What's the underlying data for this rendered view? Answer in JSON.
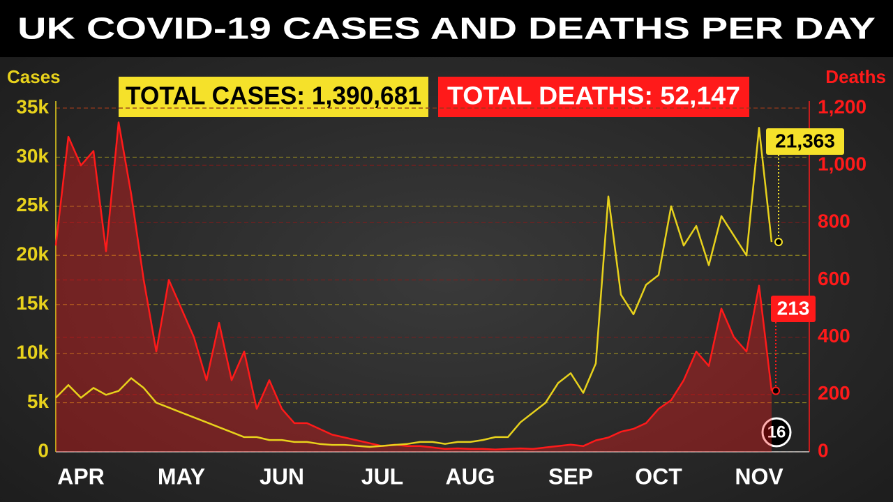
{
  "chart_data": {
    "type": "dual-line",
    "title": "UK COVID-19 CASES AND DEATHS PER DAY",
    "ylabel": "Cases",
    "y2label": "Deaths",
    "totals": [
      "TOTAL CASES: 1,390,681",
      "TOTAL DEATHS: 52,147"
    ],
    "annotation": "16",
    "categories": [
      null,
      null,
      "APR",
      null,
      null,
      null,
      null,
      null,
      null,
      null,
      "MAY",
      null,
      null,
      null,
      null,
      null,
      null,
      null,
      "JUN",
      null,
      null,
      null,
      null,
      null,
      null,
      null,
      "JUL",
      null,
      null,
      null,
      null,
      null,
      null,
      "AUG",
      null,
      null,
      null,
      null,
      null,
      null,
      null,
      "SEP",
      null,
      null,
      null,
      null,
      null,
      null,
      "OCT",
      null,
      null,
      null,
      null,
      null,
      null,
      null,
      "NOV",
      null
    ],
    "series": [
      {
        "name": "Cases",
        "color": "#e8d21c",
        "values": [
          5500,
          6800,
          5500,
          6500,
          5800,
          6200,
          7500,
          6500,
          5000,
          4500,
          4000,
          3500,
          3000,
          2500,
          2000,
          1500,
          1500,
          1200,
          1200,
          1000,
          1000,
          800,
          700,
          700,
          600,
          500,
          600,
          700,
          800,
          1000,
          1000,
          800,
          1000,
          1000,
          1200,
          1500,
          1500,
          3000,
          4000,
          5000,
          7000,
          8000,
          6000,
          9000,
          26000,
          16000,
          14000,
          17000,
          18000,
          25000,
          21000,
          23000,
          19000,
          24000,
          22000,
          20000,
          33000,
          21363
        ],
        "value_labels": [
          null,
          null,
          null,
          null,
          null,
          null,
          null,
          null,
          null,
          null,
          null,
          null,
          null,
          null,
          null,
          null,
          null,
          null,
          null,
          null,
          null,
          null,
          null,
          null,
          null,
          null,
          null,
          null,
          null,
          null,
          null,
          null,
          null,
          null,
          null,
          null,
          null,
          null,
          null,
          null,
          null,
          null,
          null,
          null,
          null,
          null,
          null,
          null,
          null,
          null,
          null,
          null,
          null,
          null,
          null,
          null,
          null,
          "21,363"
        ]
      },
      {
        "name": "Deaths",
        "color": "#ff1a1a",
        "axis": "y2",
        "values": [
          720,
          1100,
          1000,
          1050,
          700,
          1150,
          900,
          600,
          350,
          600,
          500,
          400,
          250,
          450,
          250,
          350,
          150,
          250,
          150,
          100,
          100,
          80,
          60,
          50,
          40,
          30,
          20,
          25,
          20,
          20,
          15,
          10,
          12,
          10,
          10,
          8,
          10,
          12,
          10,
          15,
          20,
          25,
          20,
          40,
          50,
          70,
          80,
          100,
          150,
          180,
          250,
          350,
          300,
          500,
          400,
          350,
          580,
          213
        ]
      }
    ],
    "ylim": [
      0,
      35000
    ],
    "yticks": [
      0,
      {
        "value": 5000,
        "label": "5k"
      },
      {
        "value": 10000,
        "label": "10k"
      },
      {
        "value": 15000,
        "label": "15k"
      },
      {
        "value": 20000,
        "label": "20k"
      },
      {
        "value": 25000,
        "label": "25k"
      },
      {
        "value": 30000,
        "label": "30k"
      },
      {
        "value": 35000,
        "label": "35k"
      }
    ],
    "y2lim": [
      0,
      1200
    ],
    "y2ticks": [
      0,
      200,
      400,
      600,
      800,
      {
        "value": 1000,
        "label": "1,000"
      },
      {
        "value": 1200,
        "label": "1,200"
      }
    ],
    "grid": true
  }
}
